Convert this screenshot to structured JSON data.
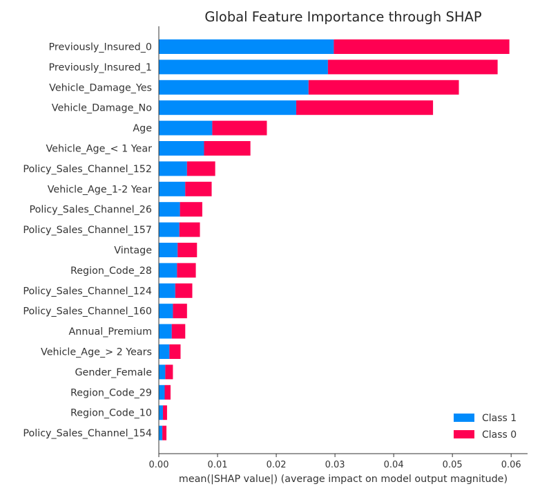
{
  "chart_data": {
    "type": "bar",
    "orientation": "horizontal",
    "stacked": true,
    "title": "Global Feature Importance through SHAP",
    "xlabel": "mean(|SHAP value|) (average impact on model output magnitude)",
    "ylabel": "",
    "xlim": [
      0,
      0.0628
    ],
    "xticks": [
      0.0,
      0.01,
      0.02,
      0.03,
      0.04,
      0.05,
      0.06
    ],
    "xtick_labels": [
      "0.00",
      "0.01",
      "0.02",
      "0.03",
      "0.04",
      "0.05",
      "0.06"
    ],
    "grid": false,
    "legend_position": "bottom-right",
    "categories": [
      "Previously_Insured_0",
      "Previously_Insured_1",
      "Vehicle_Damage_Yes",
      "Vehicle_Damage_No",
      "Age",
      "Vehicle_Age_< 1 Year",
      "Policy_Sales_Channel_152",
      "Vehicle_Age_1-2 Year",
      "Policy_Sales_Channel_26",
      "Policy_Sales_Channel_157",
      "Vintage",
      "Region_Code_28",
      "Policy_Sales_Channel_124",
      "Policy_Sales_Channel_160",
      "Annual_Premium",
      "Vehicle_Age_> 2 Years",
      "Gender_Female",
      "Region_Code_29",
      "Region_Code_10",
      "Policy_Sales_Channel_154"
    ],
    "series": [
      {
        "name": "Class 1",
        "color": "#008bfb",
        "values": [
          0.0298,
          0.0288,
          0.0255,
          0.0234,
          0.0091,
          0.0077,
          0.0048,
          0.0045,
          0.0036,
          0.0035,
          0.0032,
          0.0031,
          0.0028,
          0.0024,
          0.0022,
          0.0018,
          0.0011,
          0.001,
          0.0007,
          0.0006
        ]
      },
      {
        "name": "Class 0",
        "color": "#ff0052",
        "values": [
          0.0299,
          0.0289,
          0.0256,
          0.0233,
          0.0093,
          0.0079,
          0.0048,
          0.0045,
          0.0038,
          0.0035,
          0.0033,
          0.0032,
          0.0029,
          0.0024,
          0.0023,
          0.0019,
          0.0013,
          0.001,
          0.0007,
          0.0007
        ]
      }
    ],
    "legend_order": [
      "Class 1",
      "Class 0"
    ]
  }
}
